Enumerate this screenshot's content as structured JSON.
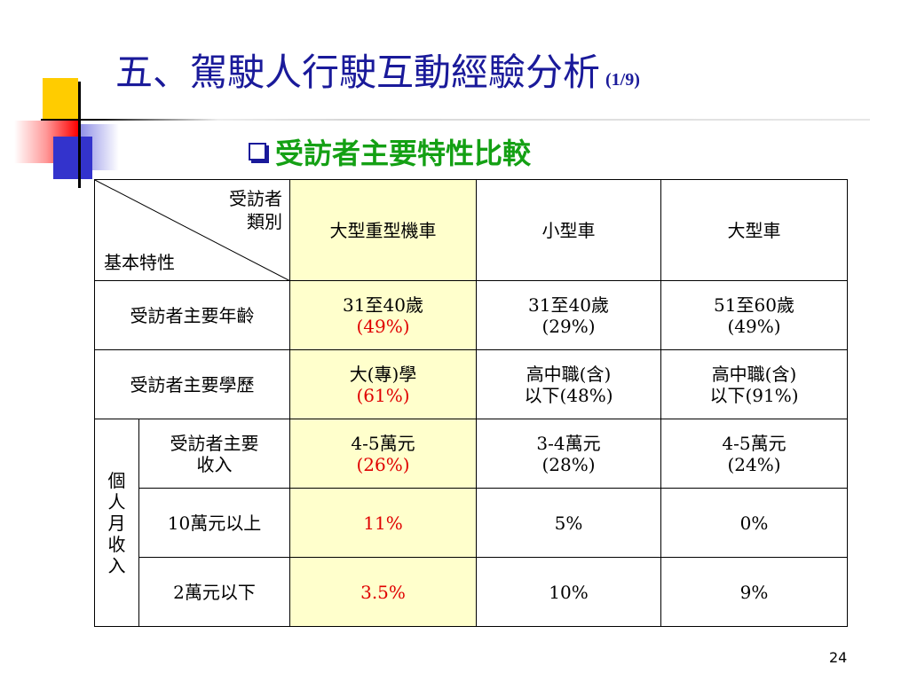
{
  "title": {
    "main": "五、駕駛人行駛互動經驗分析",
    "sub": "(1/9)"
  },
  "subtitle": "受訪者主要特性比較",
  "table": {
    "corner_top_line1": "受訪者",
    "corner_top_line2": "類別",
    "corner_bottom": "基本特性",
    "headers": [
      "大型重型機車",
      "小型車",
      "大型車"
    ],
    "rows": [
      {
        "label": "受訪者主要年齡",
        "cells": [
          {
            "line1": "31至40歲",
            "line2": "(49%)"
          },
          {
            "line1": "31至40歲",
            "line2": "(29%)"
          },
          {
            "line1": "51至60歲",
            "line2": "(49%)"
          }
        ]
      },
      {
        "label": "受訪者主要學歷",
        "cells": [
          {
            "line1": "大(專)學",
            "line2": "(61%)"
          },
          {
            "line1": "高中職(含)",
            "line2": "以下(48%)"
          },
          {
            "line1": "高中職(含)",
            "line2": "以下(91%)"
          }
        ]
      }
    ],
    "group_label_chars": [
      "個",
      "人",
      "月",
      "收",
      "入"
    ],
    "income_rows": [
      {
        "label_line1": "受訪者主要",
        "label_line2": "收入",
        "cells": [
          {
            "line1": "4-5萬元",
            "line2": "(26%)"
          },
          {
            "line1": "3-4萬元",
            "line2": "(28%)"
          },
          {
            "line1": "4-5萬元",
            "line2": "(24%)"
          }
        ]
      },
      {
        "label": "10萬元以上",
        "cells": [
          "11%",
          "5%",
          "0%"
        ]
      },
      {
        "label": "2萬元以下",
        "cells": [
          "3.5%",
          "10%",
          "9%"
        ]
      }
    ]
  },
  "page_number": "24",
  "colors": {
    "title": "#1a1a9a",
    "subtitle": "#14a014",
    "highlight": "#ffffcc",
    "emphasis": "#e00000"
  }
}
